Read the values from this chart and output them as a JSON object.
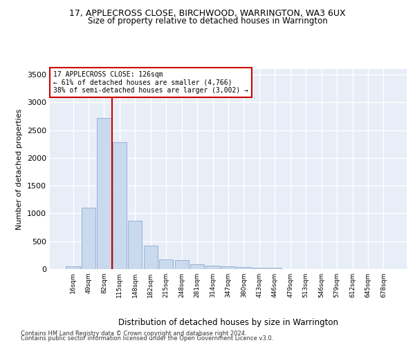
{
  "title": "17, APPLECROSS CLOSE, BIRCHWOOD, WARRINGTON, WA3 6UX",
  "subtitle": "Size of property relative to detached houses in Warrington",
  "xlabel": "Distribution of detached houses by size in Warrington",
  "ylabel": "Number of detached properties",
  "bar_color": "#c9d9ee",
  "bar_edge_color": "#7a9fc0",
  "background_color": "#e8eef8",
  "grid_color": "#ffffff",
  "categories": [
    "16sqm",
    "49sqm",
    "82sqm",
    "115sqm",
    "148sqm",
    "182sqm",
    "215sqm",
    "248sqm",
    "281sqm",
    "314sqm",
    "347sqm",
    "380sqm",
    "413sqm",
    "446sqm",
    "479sqm",
    "513sqm",
    "546sqm",
    "579sqm",
    "612sqm",
    "645sqm",
    "678sqm"
  ],
  "values": [
    50,
    1100,
    2720,
    2290,
    870,
    420,
    170,
    165,
    90,
    60,
    50,
    35,
    30,
    20,
    5,
    5,
    5,
    5,
    5,
    5,
    5
  ],
  "ylim": [
    0,
    3600
  ],
  "yticks": [
    0,
    500,
    1000,
    1500,
    2000,
    2500,
    3000,
    3500
  ],
  "annotation_line1": "17 APPLECROSS CLOSE: 126sqm",
  "annotation_line2": "← 61% of detached houses are smaller (4,766)",
  "annotation_line3": "38% of semi-detached houses are larger (3,002) →",
  "annotation_box_color": "#ffffff",
  "annotation_edge_color": "#cc0000",
  "vline_color": "#cc0000",
  "vline_x": 2.5,
  "footer1": "Contains HM Land Registry data © Crown copyright and database right 2024.",
  "footer2": "Contains public sector information licensed under the Open Government Licence v3.0."
}
